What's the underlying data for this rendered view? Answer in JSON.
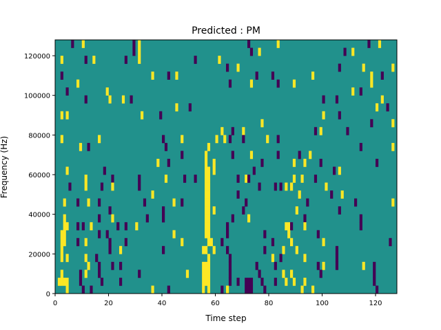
{
  "chart_data": {
    "type": "heatmap",
    "title": "Predicted : PM",
    "xlabel": "Time step",
    "ylabel": "Frequency (Hz)",
    "xlim": [
      0,
      128
    ],
    "ylim": [
      0,
      128000
    ],
    "n_time_steps": 128,
    "n_freq_bins": 32,
    "freq_bin_hz": 4000,
    "xticks": [
      0,
      20,
      40,
      60,
      80,
      100,
      120
    ],
    "yticks": [
      0,
      20000,
      40000,
      60000,
      80000,
      100000,
      120000
    ],
    "colormap": "viridis",
    "background_value": 0,
    "value_colors": {
      "-1": "#440154",
      "0": "#21918c",
      "1": "#fde725"
    },
    "cells_note": "[time_step, freq_bin, value]; unlisted cells are 0",
    "cells": [
      [
        6,
        31,
        -1
      ],
      [
        10,
        31,
        1
      ],
      [
        29,
        31,
        -1
      ],
      [
        31,
        31,
        1
      ],
      [
        72,
        31,
        -1
      ],
      [
        83,
        31,
        1
      ],
      [
        117,
        31,
        -1
      ],
      [
        121,
        31,
        1
      ],
      [
        29,
        30,
        -1
      ],
      [
        31,
        30,
        1
      ],
      [
        73,
        30,
        -1
      ],
      [
        76,
        30,
        1
      ],
      [
        108,
        30,
        -1
      ],
      [
        111,
        30,
        1
      ],
      [
        2,
        29,
        1
      ],
      [
        11,
        29,
        -1
      ],
      [
        14,
        29,
        1
      ],
      [
        26,
        29,
        -1
      ],
      [
        31,
        29,
        1
      ],
      [
        52,
        29,
        -1
      ],
      [
        61,
        29,
        1
      ],
      [
        64,
        28,
        -1
      ],
      [
        68,
        28,
        1
      ],
      [
        106,
        28,
        -1
      ],
      [
        115,
        28,
        1
      ],
      [
        126,
        28,
        1
      ],
      [
        2,
        27,
        -1
      ],
      [
        36,
        27,
        1
      ],
      [
        42,
        27,
        -1
      ],
      [
        45,
        27,
        1
      ],
      [
        75,
        27,
        -1
      ],
      [
        81,
        27,
        -1
      ],
      [
        96,
        27,
        1
      ],
      [
        118,
        27,
        1
      ],
      [
        122,
        27,
        -1
      ],
      [
        8,
        26,
        1
      ],
      [
        65,
        26,
        -1
      ],
      [
        73,
        26,
        1
      ],
      [
        83,
        26,
        -1
      ],
      [
        89,
        26,
        1
      ],
      [
        118,
        26,
        1
      ],
      [
        4,
        25,
        -1
      ],
      [
        19,
        25,
        1
      ],
      [
        111,
        25,
        1
      ],
      [
        114,
        25,
        -1
      ],
      [
        11,
        24,
        -1
      ],
      [
        20,
        24,
        1
      ],
      [
        25,
        24,
        1
      ],
      [
        28,
        24,
        -1
      ],
      [
        100,
        24,
        -1
      ],
      [
        105,
        24,
        -1
      ],
      [
        122,
        24,
        1
      ],
      [
        45,
        23,
        1
      ],
      [
        50,
        23,
        -1
      ],
      [
        120,
        23,
        1
      ],
      [
        124,
        23,
        -1
      ],
      [
        2,
        22,
        1
      ],
      [
        4,
        22,
        1
      ],
      [
        32,
        22,
        1
      ],
      [
        39,
        22,
        -1
      ],
      [
        100,
        22,
        1
      ],
      [
        106,
        22,
        -1
      ],
      [
        77,
        21,
        1
      ],
      [
        118,
        21,
        -1
      ],
      [
        126,
        21,
        1
      ],
      [
        62,
        20,
        1
      ],
      [
        66,
        20,
        -1
      ],
      [
        70,
        20,
        1
      ],
      [
        97,
        20,
        -1
      ],
      [
        99,
        20,
        1
      ],
      [
        109,
        20,
        -1
      ],
      [
        2,
        19,
        1
      ],
      [
        16,
        19,
        1
      ],
      [
        40,
        19,
        -1
      ],
      [
        47,
        19,
        1
      ],
      [
        60,
        19,
        1
      ],
      [
        63,
        19,
        1
      ],
      [
        65,
        19,
        -1
      ],
      [
        70,
        19,
        -1
      ],
      [
        79,
        19,
        1
      ],
      [
        83,
        19,
        -1
      ],
      [
        9,
        18,
        1
      ],
      [
        12,
        18,
        -1
      ],
      [
        41,
        18,
        -1
      ],
      [
        57,
        18,
        1
      ],
      [
        114,
        18,
        -1
      ],
      [
        126,
        18,
        1
      ],
      [
        47,
        17,
        -1
      ],
      [
        56,
        17,
        1
      ],
      [
        66,
        17,
        -1
      ],
      [
        73,
        17,
        1
      ],
      [
        83,
        17,
        -1
      ],
      [
        91,
        17,
        -1
      ],
      [
        95,
        17,
        1
      ],
      [
        38,
        16,
        1
      ],
      [
        42,
        16,
        -1
      ],
      [
        56,
        16,
        1
      ],
      [
        59,
        16,
        1
      ],
      [
        77,
        16,
        -1
      ],
      [
        89,
        16,
        1
      ],
      [
        93,
        16,
        1
      ],
      [
        99,
        16,
        -1
      ],
      [
        120,
        16,
        -1
      ],
      [
        4,
        15,
        1
      ],
      [
        18,
        15,
        -1
      ],
      [
        56,
        15,
        1
      ],
      [
        57,
        15,
        1
      ],
      [
        59,
        15,
        1
      ],
      [
        74,
        15,
        -1
      ],
      [
        104,
        15,
        -1
      ],
      [
        106,
        15,
        1
      ],
      [
        11,
        14,
        1
      ],
      [
        21,
        14,
        -1
      ],
      [
        31,
        14,
        -1
      ],
      [
        41,
        14,
        1
      ],
      [
        48,
        14,
        -1
      ],
      [
        52,
        14,
        -1
      ],
      [
        56,
        14,
        1
      ],
      [
        57,
        14,
        1
      ],
      [
        68,
        14,
        -1
      ],
      [
        71,
        14,
        1
      ],
      [
        72,
        14,
        -1
      ],
      [
        89,
        14,
        1
      ],
      [
        92,
        14,
        1
      ],
      [
        97,
        14,
        -1
      ],
      [
        5,
        13,
        -1
      ],
      [
        11,
        13,
        1
      ],
      [
        17,
        13,
        -1
      ],
      [
        21,
        13,
        1
      ],
      [
        31,
        13,
        -1
      ],
      [
        56,
        13,
        1
      ],
      [
        57,
        13,
        1
      ],
      [
        76,
        13,
        -1
      ],
      [
        82,
        13,
        -1
      ],
      [
        84,
        13,
        -1
      ],
      [
        86,
        13,
        1
      ],
      [
        88,
        13,
        1
      ],
      [
        101,
        13,
        1
      ],
      [
        36,
        12,
        1
      ],
      [
        56,
        12,
        1
      ],
      [
        57,
        12,
        1
      ],
      [
        68,
        12,
        -1
      ],
      [
        91,
        12,
        1
      ],
      [
        103,
        12,
        -1
      ],
      [
        107,
        12,
        1
      ],
      [
        3,
        11,
        1
      ],
      [
        8,
        11,
        -1
      ],
      [
        12,
        11,
        1
      ],
      [
        16,
        11,
        -1
      ],
      [
        33,
        11,
        -1
      ],
      [
        44,
        11,
        1
      ],
      [
        47,
        11,
        -1
      ],
      [
        56,
        11,
        1
      ],
      [
        57,
        11,
        1
      ],
      [
        71,
        11,
        -1
      ],
      [
        94,
        11,
        -1
      ],
      [
        112,
        11,
        -1
      ],
      [
        126,
        11,
        1
      ],
      [
        20,
        10,
        -1
      ],
      [
        40,
        10,
        -1
      ],
      [
        56,
        10,
        1
      ],
      [
        57,
        10,
        1
      ],
      [
        59,
        10,
        1
      ],
      [
        70,
        10,
        -1
      ],
      [
        90,
        10,
        1
      ],
      [
        106,
        10,
        -1
      ],
      [
        3,
        9,
        1
      ],
      [
        16,
        9,
        -1
      ],
      [
        21,
        9,
        1
      ],
      [
        34,
        9,
        -1
      ],
      [
        40,
        9,
        -1
      ],
      [
        56,
        9,
        1
      ],
      [
        57,
        9,
        1
      ],
      [
        66,
        9,
        -1
      ],
      [
        72,
        9,
        1
      ],
      [
        93,
        9,
        -1
      ],
      [
        114,
        9,
        -1
      ],
      [
        3,
        8,
        1
      ],
      [
        4,
        8,
        1
      ],
      [
        8,
        8,
        -1
      ],
      [
        10,
        8,
        -1
      ],
      [
        13,
        8,
        1
      ],
      [
        23,
        8,
        -1
      ],
      [
        26,
        8,
        -1
      ],
      [
        30,
        8,
        1
      ],
      [
        56,
        8,
        1
      ],
      [
        57,
        8,
        1
      ],
      [
        64,
        8,
        -1
      ],
      [
        86,
        8,
        1
      ],
      [
        87,
        8,
        1
      ],
      [
        88,
        8,
        -1
      ],
      [
        93,
        8,
        1
      ],
      [
        114,
        8,
        -1
      ],
      [
        2,
        7,
        1
      ],
      [
        3,
        7,
        1
      ],
      [
        16,
        7,
        -1
      ],
      [
        19,
        7,
        -1
      ],
      [
        44,
        7,
        1
      ],
      [
        56,
        7,
        1
      ],
      [
        57,
        7,
        1
      ],
      [
        64,
        7,
        -1
      ],
      [
        78,
        7,
        -1
      ],
      [
        87,
        7,
        1
      ],
      [
        98,
        7,
        -1
      ],
      [
        2,
        6,
        1
      ],
      [
        3,
        6,
        1
      ],
      [
        8,
        6,
        -1
      ],
      [
        11,
        6,
        1
      ],
      [
        20,
        6,
        -1
      ],
      [
        26,
        6,
        -1
      ],
      [
        47,
        6,
        1
      ],
      [
        57,
        6,
        1
      ],
      [
        58,
        6,
        1
      ],
      [
        62,
        6,
        -1
      ],
      [
        81,
        6,
        -1
      ],
      [
        88,
        6,
        1
      ],
      [
        100,
        6,
        1
      ],
      [
        125,
        6,
        -1
      ],
      [
        2,
        5,
        1
      ],
      [
        20,
        5,
        -1
      ],
      [
        24,
        5,
        1
      ],
      [
        40,
        5,
        -1
      ],
      [
        55,
        5,
        1
      ],
      [
        56,
        5,
        1
      ],
      [
        59,
        5,
        1
      ],
      [
        64,
        5,
        -1
      ],
      [
        78,
        5,
        -1
      ],
      [
        85,
        5,
        1
      ],
      [
        90,
        5,
        1
      ],
      [
        105,
        5,
        -1
      ],
      [
        2,
        4,
        1
      ],
      [
        4,
        4,
        1
      ],
      [
        11,
        4,
        1
      ],
      [
        15,
        4,
        -1
      ],
      [
        57,
        4,
        1
      ],
      [
        65,
        4,
        -1
      ],
      [
        81,
        4,
        1
      ],
      [
        84,
        4,
        -1
      ],
      [
        93,
        4,
        1
      ],
      [
        105,
        4,
        -1
      ],
      [
        12,
        3,
        1
      ],
      [
        16,
        3,
        -1
      ],
      [
        21,
        3,
        -1
      ],
      [
        24,
        3,
        -1
      ],
      [
        55,
        3,
        1
      ],
      [
        56,
        3,
        1
      ],
      [
        57,
        3,
        1
      ],
      [
        65,
        3,
        -1
      ],
      [
        75,
        3,
        -1
      ],
      [
        82,
        3,
        -1
      ],
      [
        98,
        3,
        -1
      ],
      [
        100,
        3,
        1
      ],
      [
        105,
        3,
        -1
      ],
      [
        115,
        3,
        1
      ],
      [
        119,
        3,
        -1
      ],
      [
        2,
        2,
        1
      ],
      [
        9,
        2,
        -1
      ],
      [
        11,
        2,
        1
      ],
      [
        16,
        2,
        -1
      ],
      [
        31,
        2,
        -1
      ],
      [
        49,
        2,
        1
      ],
      [
        55,
        2,
        1
      ],
      [
        56,
        2,
        1
      ],
      [
        57,
        2,
        1
      ],
      [
        65,
        2,
        -1
      ],
      [
        76,
        2,
        -1
      ],
      [
        85,
        2,
        1
      ],
      [
        88,
        2,
        1
      ],
      [
        99,
        2,
        -1
      ],
      [
        119,
        2,
        -1
      ],
      [
        1,
        1,
        1
      ],
      [
        2,
        1,
        1
      ],
      [
        3,
        1,
        1
      ],
      [
        4,
        1,
        1
      ],
      [
        9,
        1,
        -1
      ],
      [
        17,
        1,
        -1
      ],
      [
        24,
        1,
        -1
      ],
      [
        55,
        1,
        1
      ],
      [
        56,
        1,
        1
      ],
      [
        57,
        1,
        1
      ],
      [
        65,
        1,
        -1
      ],
      [
        68,
        1,
        -1
      ],
      [
        71,
        1,
        -1
      ],
      [
        72,
        1,
        -1
      ],
      [
        73,
        1,
        -1
      ],
      [
        77,
        1,
        -1
      ],
      [
        82,
        1,
        -1
      ],
      [
        86,
        1,
        1
      ],
      [
        89,
        1,
        1
      ],
      [
        93,
        1,
        1
      ],
      [
        119,
        1,
        -1
      ],
      [
        4,
        0,
        1
      ],
      [
        10,
        0,
        -1
      ],
      [
        13,
        0,
        -1
      ],
      [
        36,
        0,
        1
      ],
      [
        42,
        0,
        -1
      ],
      [
        55,
        0,
        1
      ],
      [
        57,
        0,
        1
      ],
      [
        62,
        0,
        -1
      ],
      [
        64,
        0,
        1
      ],
      [
        71,
        0,
        -1
      ],
      [
        72,
        0,
        -1
      ],
      [
        73,
        0,
        -1
      ],
      [
        78,
        0,
        -1
      ],
      [
        92,
        0,
        1
      ],
      [
        96,
        0,
        1
      ],
      [
        120,
        0,
        -1
      ]
    ]
  }
}
